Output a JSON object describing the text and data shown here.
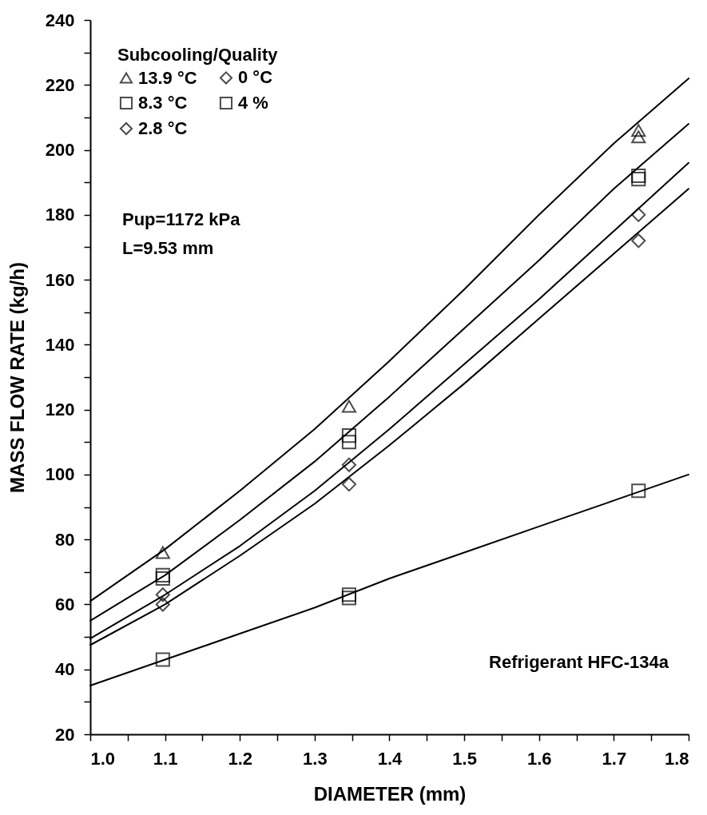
{
  "chart_data": {
    "type": "scatter",
    "xlabel": "DIAMETER (mm)",
    "ylabel": "MASS FLOW RATE (kg/h)",
    "legend_title": "Subcooling/Quality",
    "legend": "top left",
    "xlim": [
      1.0,
      1.8
    ],
    "xticks": [
      {
        "value": 1.0,
        "label": "1.0"
      },
      {
        "value": 1.05,
        "label": null
      },
      1.1,
      {
        "value": 1.15,
        "label": null
      },
      1.2,
      {
        "value": 1.25,
        "label": null
      },
      1.3,
      {
        "value": 1.35,
        "label": null
      },
      1.4,
      {
        "value": 1.45,
        "label": null
      },
      1.5,
      {
        "value": 1.55,
        "label": null
      },
      1.6,
      {
        "value": 1.65,
        "label": null
      },
      1.7,
      {
        "value": 1.75,
        "label": null
      },
      1.8
    ],
    "ylim": [
      20,
      240
    ],
    "yticks": [
      20,
      {
        "value": 30,
        "label": null
      },
      40,
      {
        "value": 50,
        "label": null
      },
      60,
      {
        "value": 70,
        "label": null
      },
      80,
      {
        "value": 90,
        "label": null
      },
      100,
      {
        "value": 110,
        "label": null
      },
      120,
      {
        "value": 130,
        "label": null
      },
      140,
      {
        "value": 150,
        "label": null
      },
      160,
      {
        "value": 170,
        "label": null
      },
      180,
      {
        "value": 190,
        "label": null
      },
      200,
      {
        "value": 210,
        "label": null
      },
      220,
      {
        "value": 230,
        "label": null
      },
      240
    ],
    "annotations": [
      "Pup=1172 kPa",
      "L=9.53 mm",
      "Refrigerant HFC-134a"
    ],
    "series": [
      {
        "name": "13.9 °C",
        "color": "#000000",
        "marker": "triangle",
        "x": [
          1.097,
          1.346,
          1.733,
          1.733
        ],
        "values": [
          76,
          121,
          206,
          204
        ]
      },
      {
        "name": "8.3 °C",
        "color": "#000000",
        "marker": "square",
        "x": [
          1.097,
          1.097,
          1.346,
          1.346,
          1.733,
          1.733
        ],
        "values": [
          69,
          68,
          112,
          110,
          192,
          191
        ]
      },
      {
        "name": "2.8 °C",
        "color": "#000000",
        "marker": "diamond",
        "x": [
          1.097,
          1.346,
          1.733
        ],
        "values": [
          63,
          103,
          180
        ]
      },
      {
        "name": "0 °C",
        "color": "#000000",
        "marker": "diamond",
        "x": [
          1.097,
          1.346,
          1.733
        ],
        "values": [
          60,
          97,
          172
        ]
      },
      {
        "name": "4 %",
        "color": "#000000",
        "marker": "square",
        "x": [
          1.097,
          1.346,
          1.346,
          1.733
        ],
        "values": [
          43,
          63,
          62,
          95
        ]
      },
      {
        "type": "line",
        "color": "#000000",
        "line_style": "solid",
        "x": [
          1.0,
          1.1,
          1.2,
          1.3,
          1.4,
          1.5,
          1.6,
          1.7,
          1.8
        ],
        "values": [
          61,
          77,
          95,
          114,
          135,
          157,
          180,
          202,
          222
        ]
      },
      {
        "type": "line",
        "color": "#000000",
        "line_style": "solid",
        "x": [
          1.0,
          1.1,
          1.2,
          1.3,
          1.4,
          1.5,
          1.6,
          1.7,
          1.8
        ],
        "values": [
          55,
          69,
          86,
          104,
          124,
          145,
          166,
          188,
          208
        ]
      },
      {
        "type": "line",
        "color": "#000000",
        "line_style": "solid",
        "x": [
          1.0,
          1.1,
          1.2,
          1.3,
          1.4,
          1.5,
          1.6,
          1.7,
          1.8
        ],
        "values": [
          49.5,
          63,
          78,
          95,
          114,
          134,
          154,
          175,
          196
        ]
      },
      {
        "type": "line",
        "color": "#000000",
        "line_style": "solid",
        "x": [
          1.0,
          1.1,
          1.2,
          1.3,
          1.4,
          1.5,
          1.6,
          1.7,
          1.8
        ],
        "values": [
          47.5,
          60,
          75,
          91,
          109,
          128,
          148,
          168,
          188
        ]
      },
      {
        "type": "line",
        "color": "#000000",
        "line_style": "solid",
        "x": [
          1.0,
          1.1,
          1.2,
          1.3,
          1.4,
          1.5,
          1.6,
          1.7,
          1.8
        ],
        "values": [
          35,
          43,
          51,
          59,
          68,
          76,
          84,
          92,
          100
        ]
      }
    ]
  }
}
